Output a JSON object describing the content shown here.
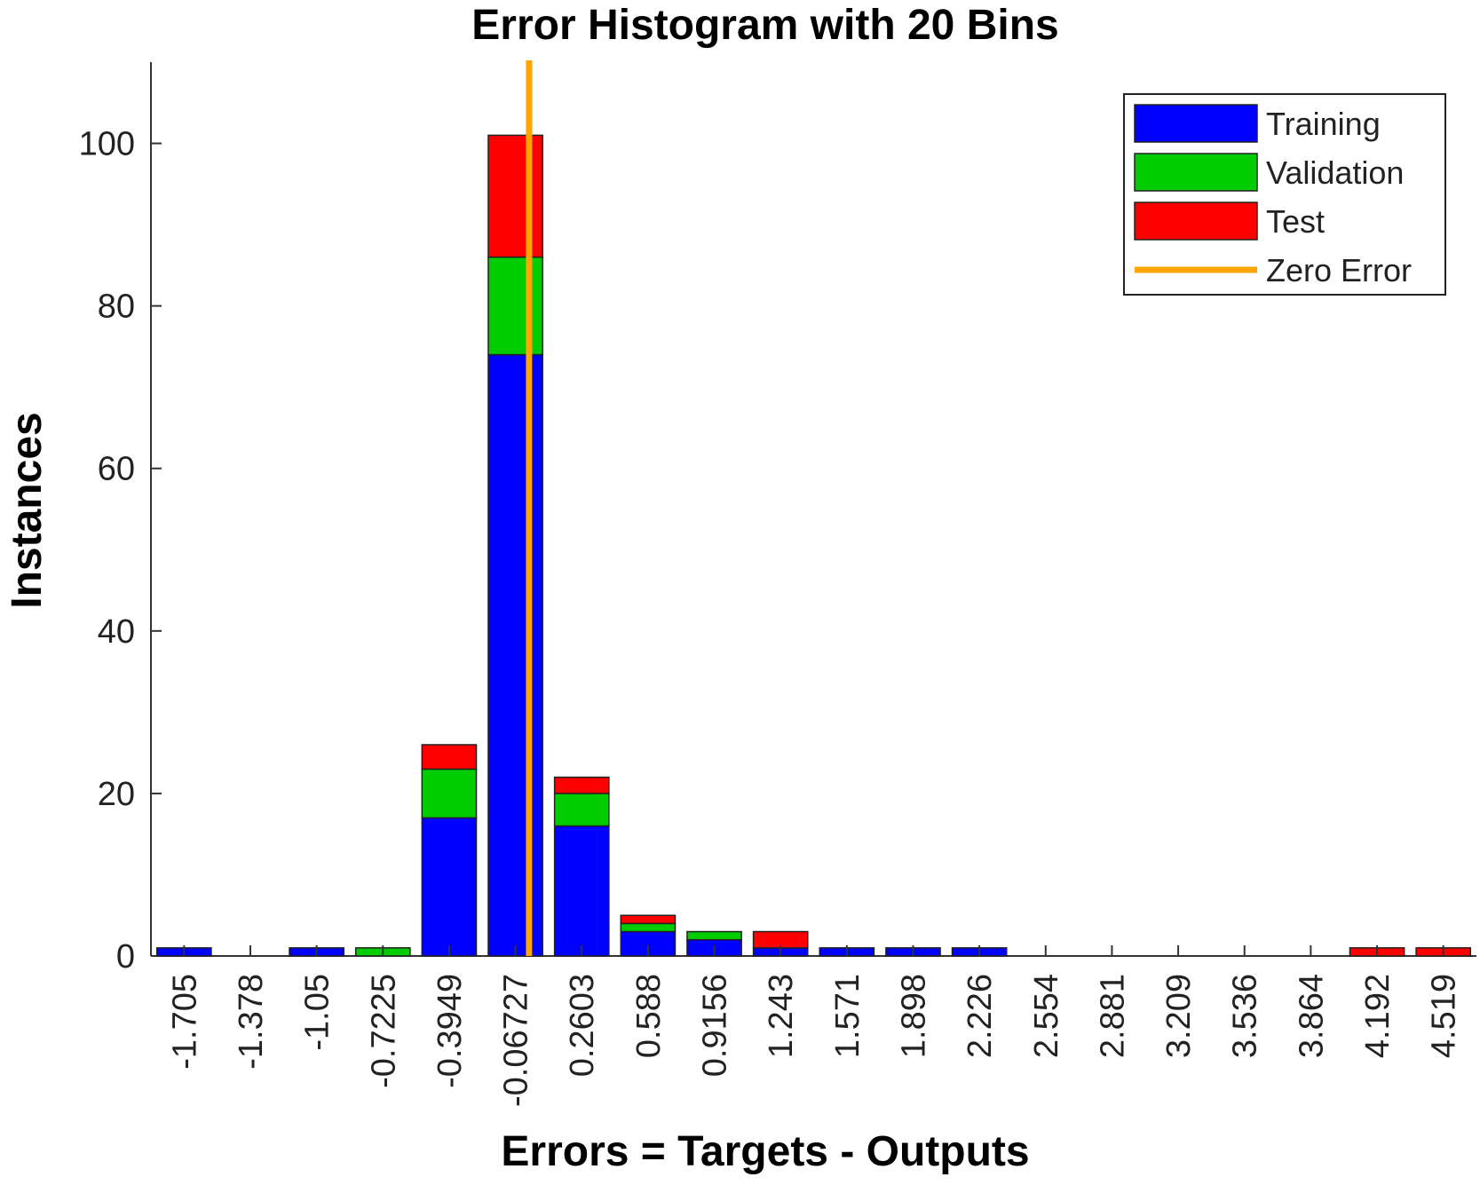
{
  "chart_data": {
    "type": "bar",
    "stacked": true,
    "title": "Error Histogram with 20 Bins",
    "xlabel": "Errors = Targets - Outputs",
    "ylabel": "Instances",
    "ylim": [
      0,
      110
    ],
    "yticks": [
      "0",
      "20",
      "40",
      "60",
      "80",
      "100"
    ],
    "categories": [
      "-1.705",
      "-1.378",
      "-1.05",
      "-0.7225",
      "-0.3949",
      "-0.06727",
      "0.2603",
      "0.588",
      "0.9156",
      "1.243",
      "1.571",
      "1.898",
      "2.226",
      "2.554",
      "2.881",
      "3.209",
      "3.536",
      "3.864",
      "4.192",
      "4.519"
    ],
    "series": [
      {
        "name": "Training",
        "color": "#0000ff",
        "values": [
          1,
          0,
          1,
          0,
          17,
          74,
          16,
          3,
          2,
          1,
          1,
          1,
          1,
          0,
          0,
          0,
          0,
          0,
          0,
          0
        ]
      },
      {
        "name": "Validation",
        "color": "#00cc00",
        "values": [
          0,
          0,
          0,
          1,
          6,
          12,
          4,
          1,
          1,
          0,
          0,
          0,
          0,
          0,
          0,
          0,
          0,
          0,
          0,
          0
        ]
      },
      {
        "name": "Test",
        "color": "#ff0000",
        "values": [
          0,
          0,
          0,
          0,
          3,
          15,
          2,
          1,
          0,
          2,
          0,
          0,
          0,
          0,
          0,
          0,
          0,
          0,
          1,
          1
        ]
      }
    ],
    "reference_line": {
      "name": "Zero Error",
      "x": 0,
      "color": "#ffa500"
    },
    "legend_position": "top-right"
  }
}
